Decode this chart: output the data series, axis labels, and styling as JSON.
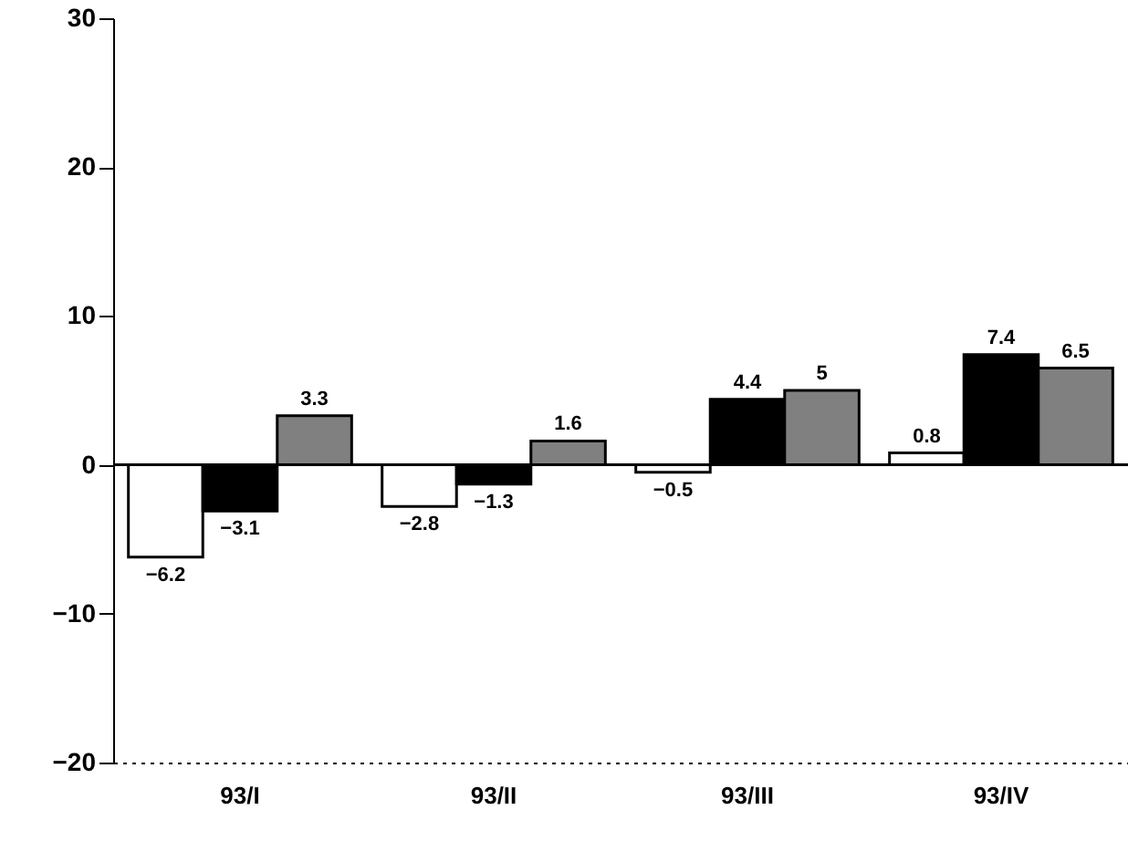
{
  "chart_data": {
    "type": "bar",
    "categories": [
      "93/I",
      "93/II",
      "93/III",
      "93/IV"
    ],
    "series": [
      {
        "color": "#ffffff",
        "values": [
          -6.2,
          -2.8,
          -0.5,
          0.8
        ]
      },
      {
        "color": "#000000",
        "values": [
          -3.1,
          -1.3,
          4.4,
          7.4
        ]
      },
      {
        "color": "#808080",
        "values": [
          3.3,
          1.6,
          5,
          6.5
        ]
      }
    ],
    "ylim": [
      -20,
      30
    ],
    "yticks": [
      -20,
      -10,
      0,
      10,
      20,
      30
    ],
    "data_labels": true,
    "grid": false,
    "ref_lines": [
      {
        "axis": "y",
        "value": 0
      }
    ]
  }
}
